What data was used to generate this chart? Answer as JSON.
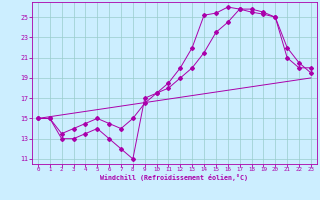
{
  "xlabel": "Windchill (Refroidissement éolien,°C)",
  "bg_color": "#cceeff",
  "line_color": "#aa00aa",
  "grid_color": "#99cccc",
  "xlim": [
    -0.5,
    23.5
  ],
  "ylim": [
    10.5,
    26.5
  ],
  "xticks": [
    0,
    1,
    2,
    3,
    4,
    5,
    6,
    7,
    8,
    9,
    10,
    11,
    12,
    13,
    14,
    15,
    16,
    17,
    18,
    19,
    20,
    21,
    22,
    23
  ],
  "yticks": [
    11,
    13,
    15,
    17,
    19,
    21,
    23,
    25
  ],
  "line1_x": [
    0,
    1,
    2,
    3,
    4,
    5,
    6,
    7,
    8,
    9,
    10,
    11,
    12,
    13,
    14,
    15,
    16,
    17,
    18,
    19,
    20,
    21,
    22,
    23
  ],
  "line1_y": [
    15,
    15,
    13,
    13,
    13.5,
    14,
    13,
    12,
    11,
    17,
    17.5,
    18.5,
    20,
    22,
    25.2,
    25.4,
    26,
    25.8,
    25.8,
    25.5,
    25,
    22,
    20.5,
    19.5
  ],
  "line2_x": [
    0,
    1,
    2,
    3,
    4,
    5,
    6,
    7,
    8,
    9,
    10,
    11,
    12,
    13,
    14,
    15,
    16,
    17,
    18,
    19,
    20,
    21,
    22,
    23
  ],
  "line2_y": [
    15,
    15,
    13.5,
    14,
    14.5,
    15,
    14.5,
    14,
    15,
    16.5,
    17.5,
    18,
    19,
    20,
    21.5,
    23.5,
    24.5,
    25.8,
    25.5,
    25.3,
    25,
    21,
    20,
    20
  ],
  "line3_x": [
    0,
    23
  ],
  "line3_y": [
    15,
    19
  ]
}
